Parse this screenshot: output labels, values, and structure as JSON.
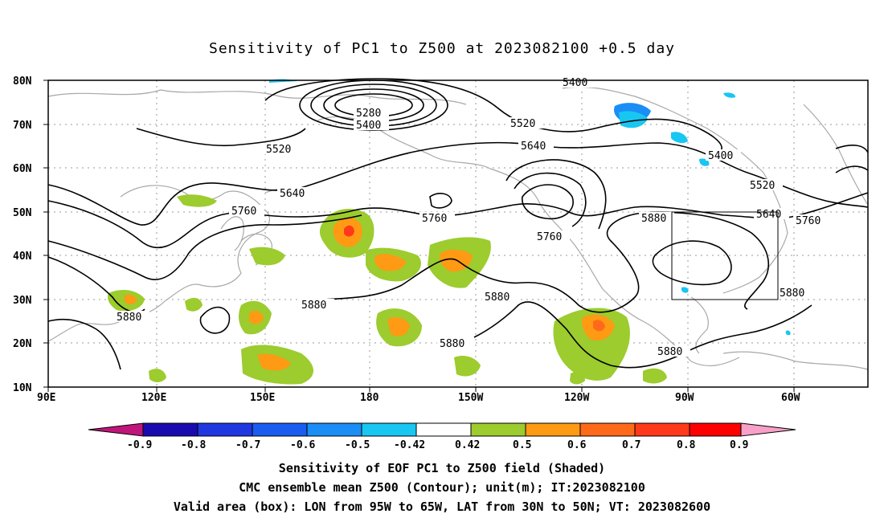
{
  "title": "Sensitivity of PC1 to Z500 at 2023082100 +0.5 day",
  "map": {
    "lon_labels": [
      "90E",
      "120E",
      "150E",
      "180",
      "150W",
      "120W",
      "90W",
      "60W"
    ],
    "lat_labels": [
      "80N",
      "70N",
      "60N",
      "50N",
      "40N",
      "30N",
      "20N",
      "10N"
    ],
    "contour_labels": [
      "5400",
      "5280",
      "5400",
      "5520",
      "5520",
      "5640",
      "5400",
      "5640",
      "5520",
      "5760",
      "5760",
      "5760",
      "5640",
      "5760",
      "5880",
      "5880",
      "5880",
      "5880",
      "5880",
      "5880"
    ],
    "valid_box": {
      "lon_west": "95W",
      "lon_east": "65W",
      "lat_south": "30N",
      "lat_north": "50N"
    }
  },
  "colorbar": {
    "labels": [
      "-0.9",
      "-0.8",
      "-0.7",
      "-0.6",
      "-0.5",
      "-0.42",
      "0.42",
      "0.5",
      "0.6",
      "0.7",
      "0.8",
      "0.9"
    ],
    "colors": [
      "#1a0bb0",
      "#2038e0",
      "#1a5cf0",
      "#1a8ef5",
      "#18c6f2",
      "#ffffff",
      "#9ccc2e",
      "#ff9a14",
      "#ff6a1a",
      "#ff3a1a",
      "#ff0000"
    ],
    "under_color": "#c0157a",
    "over_color": "#f7a0c8"
  },
  "footer": {
    "line1": "Sensitivity of EOF PC1 to Z500 field (Shaded)",
    "line2": "CMC ensemble mean Z500 (Contour); unit(m); IT:2023082100",
    "line3": "Valid area (box): LON from 95W to 65W, LAT from 30N to 50N; VT: 2023082600"
  }
}
